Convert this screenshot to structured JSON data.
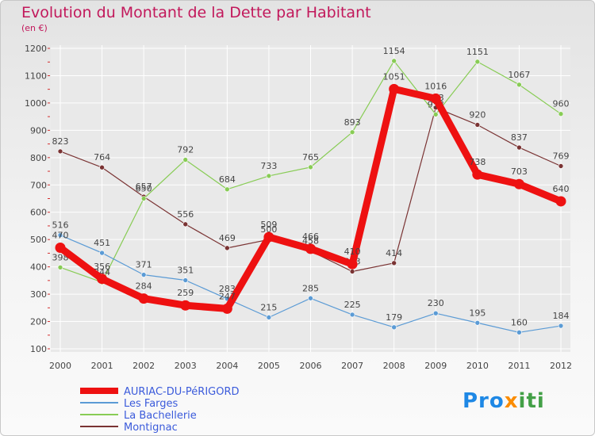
{
  "title": "Evolution du Montant de la Dette par Habitant",
  "subtitle": "(en €)",
  "logo": {
    "p1": "Pro",
    "p2": "x",
    "p3": "iti"
  },
  "colors": {
    "title": "#c2185b",
    "axis": "#444444",
    "grid": "#ffffff"
  },
  "chart_data": {
    "type": "line",
    "x": [
      "2000",
      "2001",
      "2002",
      "2003",
      "2004",
      "2005",
      "2006",
      "2007",
      "2008",
      "2009",
      "2010",
      "2011",
      "2012"
    ],
    "ylim": [
      100,
      1200
    ],
    "yticks": [
      100,
      200,
      300,
      400,
      500,
      600,
      700,
      800,
      900,
      1000,
      1100,
      1200
    ],
    "grid": true,
    "legend": "bottom-left",
    "series": [
      {
        "name": "AURIAC-DU-PéRIGORD",
        "color": "#ee1111",
        "values": [
          470,
          356,
          284,
          259,
          247,
          509,
          466,
          410,
          1051,
          1016,
          738,
          703,
          640
        ]
      },
      {
        "name": "Les Farges",
        "color": "#5b9bd5",
        "values": [
          516,
          451,
          371,
          351,
          283,
          215,
          285,
          225,
          179,
          230,
          195,
          160,
          184
        ]
      },
      {
        "name": "La Bachellerie",
        "color": "#88cc55",
        "values": [
          398,
          344,
          650,
          792,
          684,
          733,
          765,
          893,
          1154,
          958,
          1151,
          1067,
          960
        ]
      },
      {
        "name": "Montignac",
        "color": "#7a3333",
        "values": [
          823,
          764,
          657,
          556,
          469,
          500,
          458,
          383,
          414,
          983,
          920,
          837,
          769
        ]
      }
    ]
  }
}
